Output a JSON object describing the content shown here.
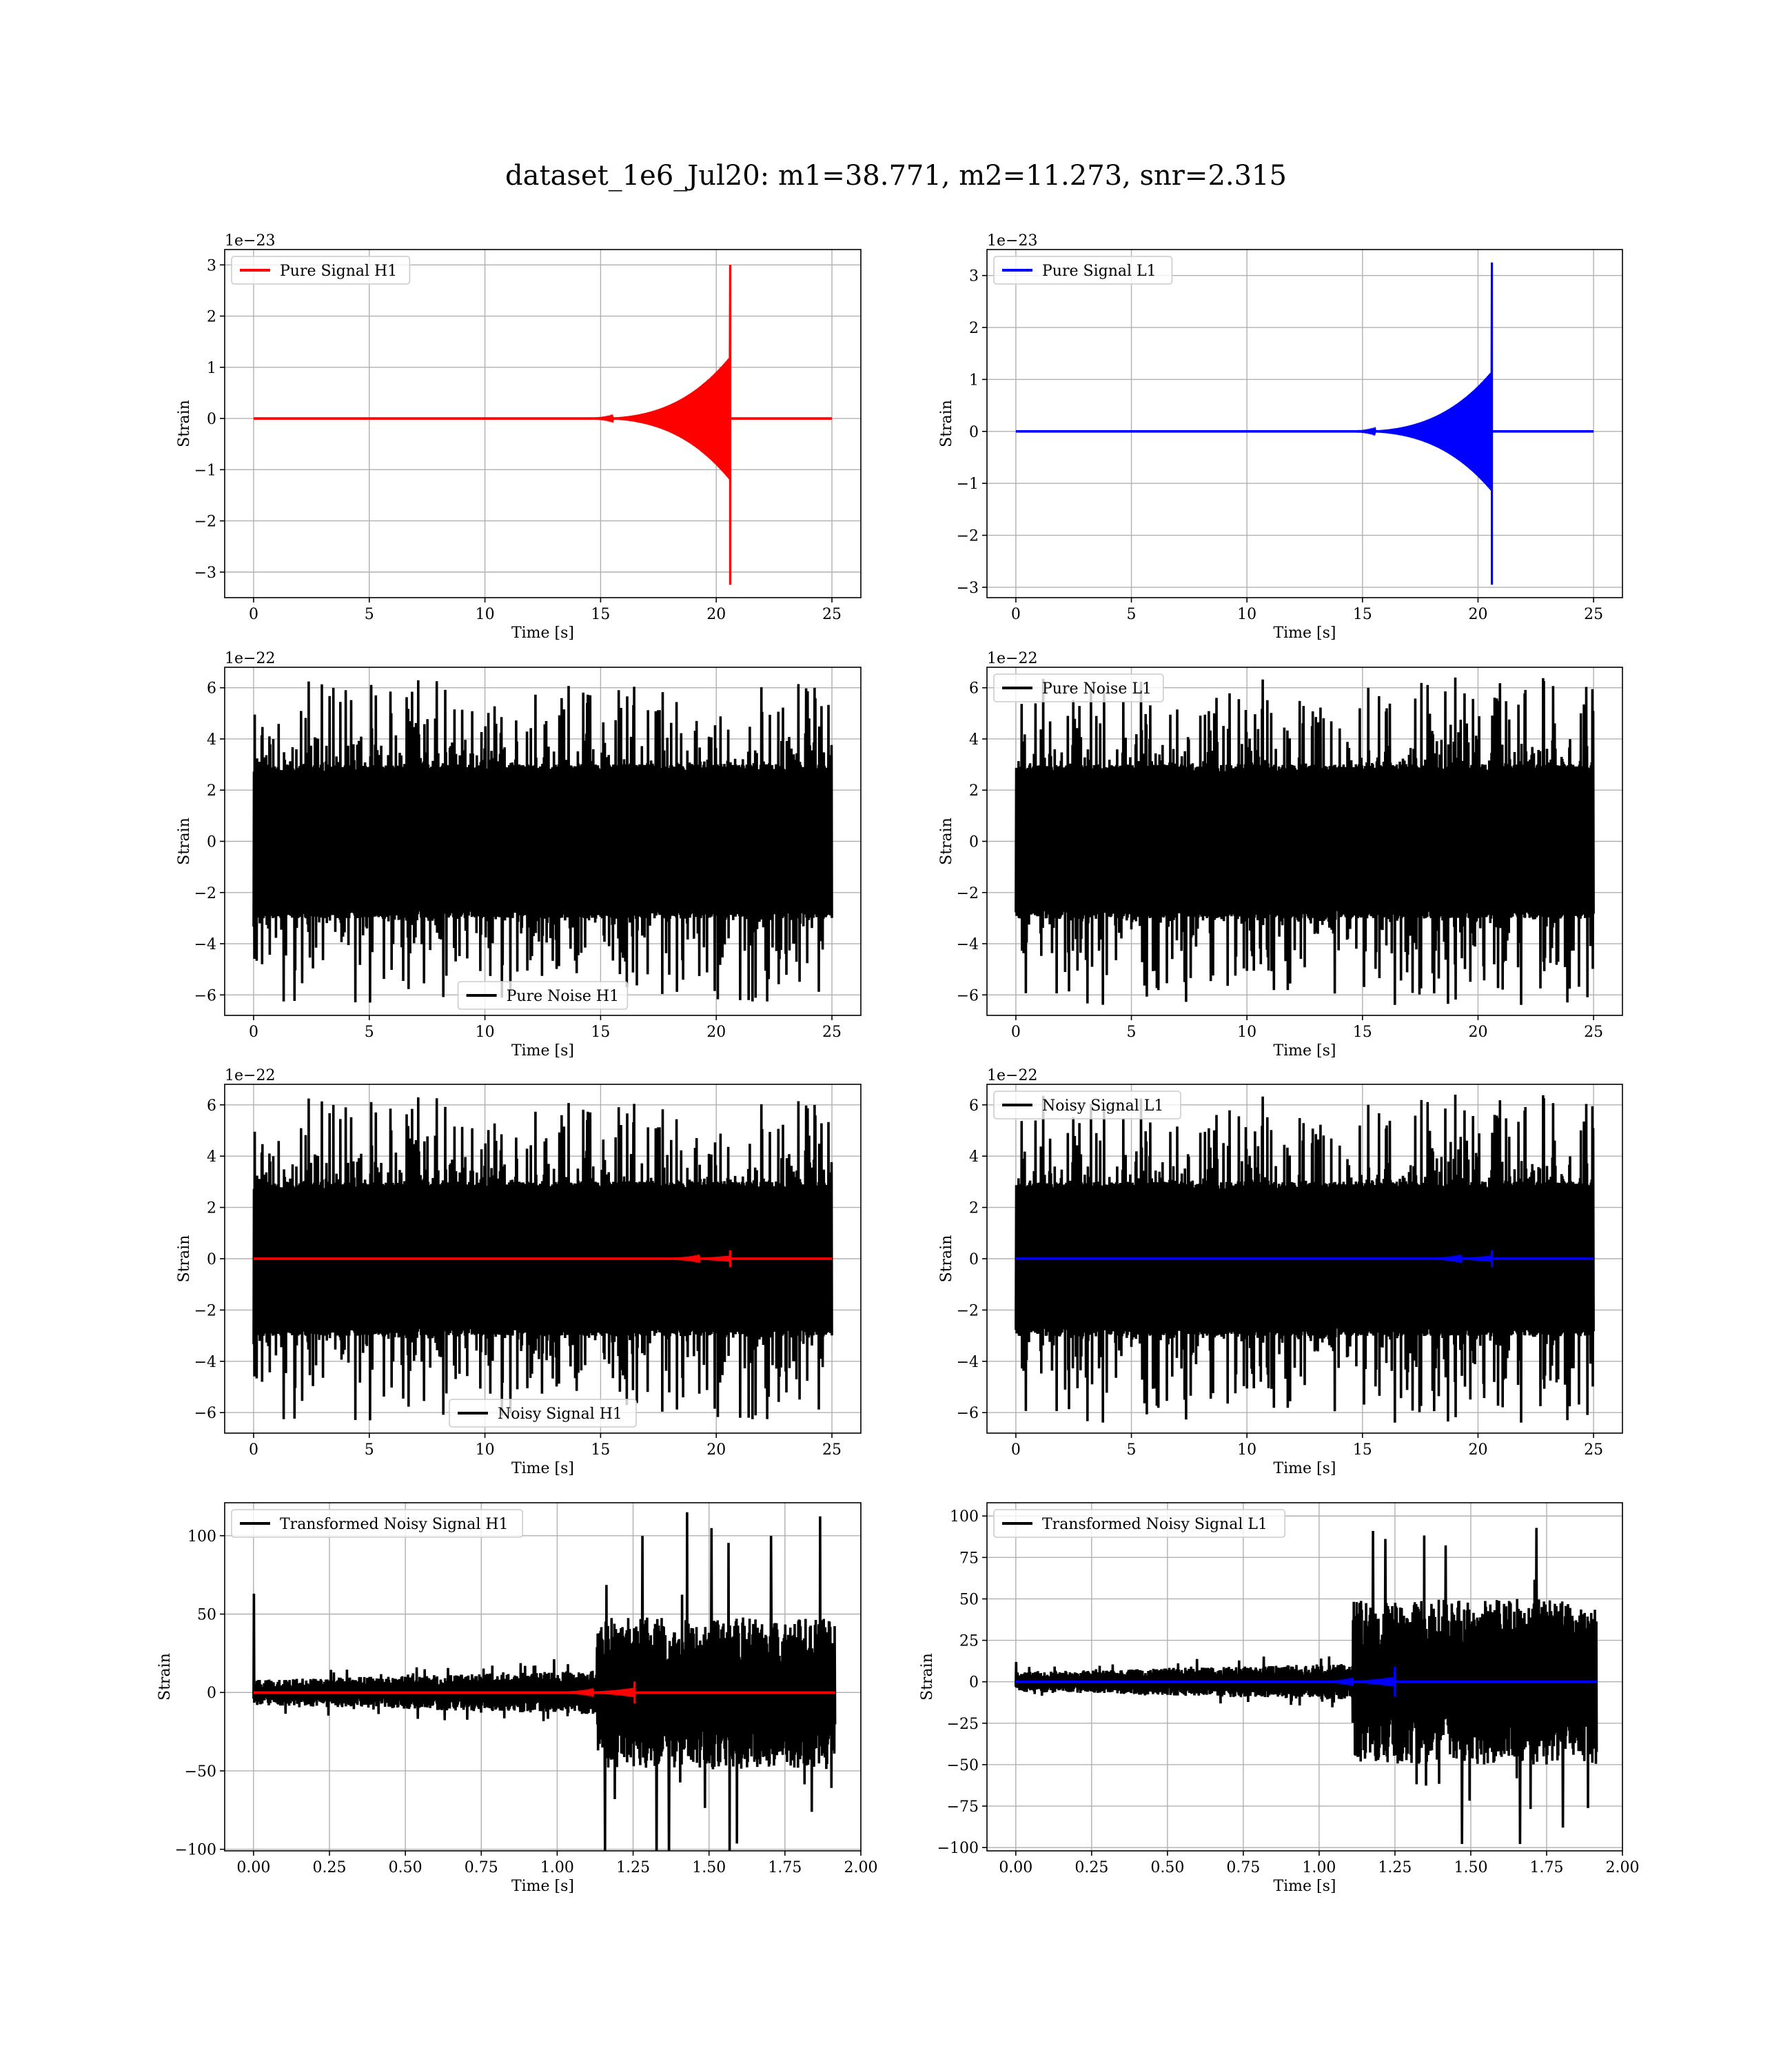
{
  "figure": {
    "title": "dataset_1e6_Jul20: m1=38.771, m2=11.273, snr=2.315"
  },
  "chart_data": [
    {
      "id": "pure-signal-h1",
      "type": "line",
      "xlabel": "Time [s]",
      "ylabel": "Strain",
      "offset": "1e−23",
      "xlim": [
        -1.25,
        26.25
      ],
      "ylim": [
        -3.5,
        3.3
      ],
      "xticks": [
        0,
        5,
        10,
        15,
        20,
        25
      ],
      "xtick_labels": [
        "0",
        "5",
        "10",
        "15",
        "20",
        "25"
      ],
      "yticks": [
        -3,
        -2,
        -1,
        0,
        1,
        2,
        3
      ],
      "ytick_labels": [
        "−3",
        "−2",
        "−1",
        "0",
        "1",
        "2",
        "3"
      ],
      "legend": "upper left",
      "series": [
        {
          "name": "Pure Signal H1",
          "color": "#ff0000",
          "kind": "chirp",
          "x_range": [
            0,
            25
          ],
          "merger": 20.6,
          "peak_pos": 3.0,
          "peak_neg": -3.25,
          "pre_amp": 1.2,
          "onset": 14
        }
      ]
    },
    {
      "id": "pure-signal-l1",
      "type": "line",
      "xlabel": "Time [s]",
      "ylabel": "Strain",
      "offset": "1e−23",
      "xlim": [
        -1.25,
        26.25
      ],
      "ylim": [
        -3.2,
        3.5
      ],
      "xticks": [
        0,
        5,
        10,
        15,
        20,
        25
      ],
      "xtick_labels": [
        "0",
        "5",
        "10",
        "15",
        "20",
        "25"
      ],
      "yticks": [
        -3,
        -2,
        -1,
        0,
        1,
        2,
        3
      ],
      "ytick_labels": [
        "−3",
        "−2",
        "−1",
        "0",
        "1",
        "2",
        "3"
      ],
      "legend": "upper left",
      "series": [
        {
          "name": "Pure Signal L1",
          "color": "#0000ff",
          "kind": "chirp",
          "x_range": [
            0,
            25
          ],
          "merger": 20.6,
          "peak_pos": 3.25,
          "peak_neg": -2.95,
          "pre_amp": 1.15,
          "onset": 14
        }
      ]
    },
    {
      "id": "pure-noise-h1",
      "type": "line",
      "xlabel": "Time [s]",
      "ylabel": "Strain",
      "offset": "1e−22",
      "xlim": [
        -1.25,
        26.25
      ],
      "ylim": [
        -6.8,
        6.8
      ],
      "xticks": [
        0,
        5,
        10,
        15,
        20,
        25
      ],
      "xtick_labels": [
        "0",
        "5",
        "10",
        "15",
        "20",
        "25"
      ],
      "yticks": [
        -6,
        -4,
        -2,
        0,
        2,
        4,
        6
      ],
      "ytick_labels": [
        "−6",
        "−4",
        "−2",
        "0",
        "2",
        "4",
        "6"
      ],
      "legend": "lower center",
      "series": [
        {
          "name": "Pure Noise H1",
          "color": "#000000",
          "kind": "noise",
          "x_range": [
            0,
            25
          ],
          "band": 3.0,
          "spike": 6.3,
          "seed": 11
        }
      ]
    },
    {
      "id": "pure-noise-l1",
      "type": "line",
      "xlabel": "Time [s]",
      "ylabel": "Strain",
      "offset": "1e−22",
      "xlim": [
        -1.25,
        26.25
      ],
      "ylim": [
        -6.8,
        6.8
      ],
      "xticks": [
        0,
        5,
        10,
        15,
        20,
        25
      ],
      "xtick_labels": [
        "0",
        "5",
        "10",
        "15",
        "20",
        "25"
      ],
      "yticks": [
        -6,
        -4,
        -2,
        0,
        2,
        4,
        6
      ],
      "ytick_labels": [
        "−6",
        "−4",
        "−2",
        "0",
        "2",
        "4",
        "6"
      ],
      "legend": "upper left",
      "series": [
        {
          "name": "Pure Noise L1",
          "color": "#000000",
          "kind": "noise",
          "x_range": [
            0,
            25
          ],
          "band": 3.0,
          "spike": 6.4,
          "seed": 23
        }
      ]
    },
    {
      "id": "noisy-signal-h1",
      "type": "line",
      "xlabel": "Time [s]",
      "ylabel": "Strain",
      "offset": "1e−22",
      "xlim": [
        -1.25,
        26.25
      ],
      "ylim": [
        -6.8,
        6.8
      ],
      "xticks": [
        0,
        5,
        10,
        15,
        20,
        25
      ],
      "xtick_labels": [
        "0",
        "5",
        "10",
        "15",
        "20",
        "25"
      ],
      "yticks": [
        -6,
        -4,
        -2,
        0,
        2,
        4,
        6
      ],
      "ytick_labels": [
        "−6",
        "−4",
        "−2",
        "0",
        "2",
        "4",
        "6"
      ],
      "legend": "lower center",
      "series": [
        {
          "name": "Noisy Signal H1",
          "color": "#000000",
          "kind": "noise",
          "x_range": [
            0,
            25
          ],
          "band": 3.0,
          "spike": 6.3,
          "seed": 11
        },
        {
          "name": "",
          "color": "#ff0000",
          "kind": "chirp",
          "x_range": [
            0,
            25
          ],
          "merger": 20.6,
          "peak_pos": 0.33,
          "peak_neg": -0.33,
          "pre_amp": 0.12,
          "onset": 17
        }
      ]
    },
    {
      "id": "noisy-signal-l1",
      "type": "line",
      "xlabel": "Time [s]",
      "ylabel": "Strain",
      "offset": "1e−22",
      "xlim": [
        -1.25,
        26.25
      ],
      "ylim": [
        -6.8,
        6.8
      ],
      "xticks": [
        0,
        5,
        10,
        15,
        20,
        25
      ],
      "xtick_labels": [
        "0",
        "5",
        "10",
        "15",
        "20",
        "25"
      ],
      "yticks": [
        -6,
        -4,
        -2,
        0,
        2,
        4,
        6
      ],
      "ytick_labels": [
        "−6",
        "−4",
        "−2",
        "0",
        "2",
        "4",
        "6"
      ],
      "legend": "upper left",
      "series": [
        {
          "name": "Noisy Signal L1",
          "color": "#000000",
          "kind": "noise",
          "x_range": [
            0,
            25
          ],
          "band": 3.0,
          "spike": 6.4,
          "seed": 23
        },
        {
          "name": "",
          "color": "#0000ff",
          "kind": "chirp",
          "x_range": [
            0,
            25
          ],
          "merger": 20.6,
          "peak_pos": 0.33,
          "peak_neg": -0.33,
          "pre_amp": 0.12,
          "onset": 17
        }
      ]
    },
    {
      "id": "transformed-noisy-signal-h1",
      "type": "line",
      "xlabel": "Time [s]",
      "ylabel": "Strain",
      "offset": "",
      "xlim": [
        -0.095,
        2.0
      ],
      "ylim": [
        -101,
        121
      ],
      "xticks": [
        0,
        0.25,
        0.5,
        0.75,
        1.0,
        1.25,
        1.5,
        1.75,
        2.0
      ],
      "xtick_labels": [
        "0.00",
        "0.25",
        "0.50",
        "0.75",
        "1.00",
        "1.25",
        "1.50",
        "1.75",
        "2.00"
      ],
      "yticks": [
        -100,
        -50,
        0,
        50,
        100
      ],
      "ytick_labels": [
        "−100",
        "−50",
        "0",
        "50",
        "100"
      ],
      "legend": "upper left",
      "series": [
        {
          "name": "Transformed Noisy Signal H1",
          "color": "#000000",
          "kind": "tnoise",
          "x_range": [
            0,
            1.915
          ],
          "jump": 1.13,
          "pre_lo": 8,
          "pre_hi": 14,
          "post": 48,
          "spike": 118,
          "start_spike": 63,
          "seed": 5
        },
        {
          "name": "",
          "color": "#ff0000",
          "kind": "chirp",
          "x_range": [
            0,
            1.915
          ],
          "merger": 1.255,
          "peak_pos": 7,
          "peak_neg": -7,
          "pre_amp": 3,
          "onset": 0.95
        }
      ]
    },
    {
      "id": "transformed-noisy-signal-l1",
      "type": "line",
      "xlabel": "Time [s]",
      "ylabel": "Strain",
      "offset": "",
      "xlim": [
        -0.095,
        2.0
      ],
      "ylim": [
        -102,
        108
      ],
      "xticks": [
        0,
        0.25,
        0.5,
        0.75,
        1.0,
        1.25,
        1.5,
        1.75,
        2.0
      ],
      "xtick_labels": [
        "0.00",
        "0.25",
        "0.50",
        "0.75",
        "1.00",
        "1.25",
        "1.50",
        "1.75",
        "2.00"
      ],
      "yticks": [
        -100,
        -75,
        -50,
        -25,
        0,
        25,
        50,
        75,
        100
      ],
      "ytick_labels": [
        "−100",
        "−75",
        "−50",
        "−25",
        "0",
        "25",
        "50",
        "75",
        "100"
      ],
      "legend": "upper left",
      "series": [
        {
          "name": "Transformed Noisy Signal L1",
          "color": "#000000",
          "kind": "tnoise",
          "x_range": [
            0,
            1.915
          ],
          "jump": 1.11,
          "pre_lo": 6,
          "pre_hi": 11,
          "post": 50,
          "spike": 100,
          "start_spike": 12,
          "seed": 9
        },
        {
          "name": "",
          "color": "#0000ff",
          "kind": "chirp",
          "x_range": [
            0,
            1.915
          ],
          "merger": 1.25,
          "peak_pos": 9,
          "peak_neg": -9,
          "pre_amp": 3,
          "onset": 0.95
        }
      ]
    }
  ]
}
